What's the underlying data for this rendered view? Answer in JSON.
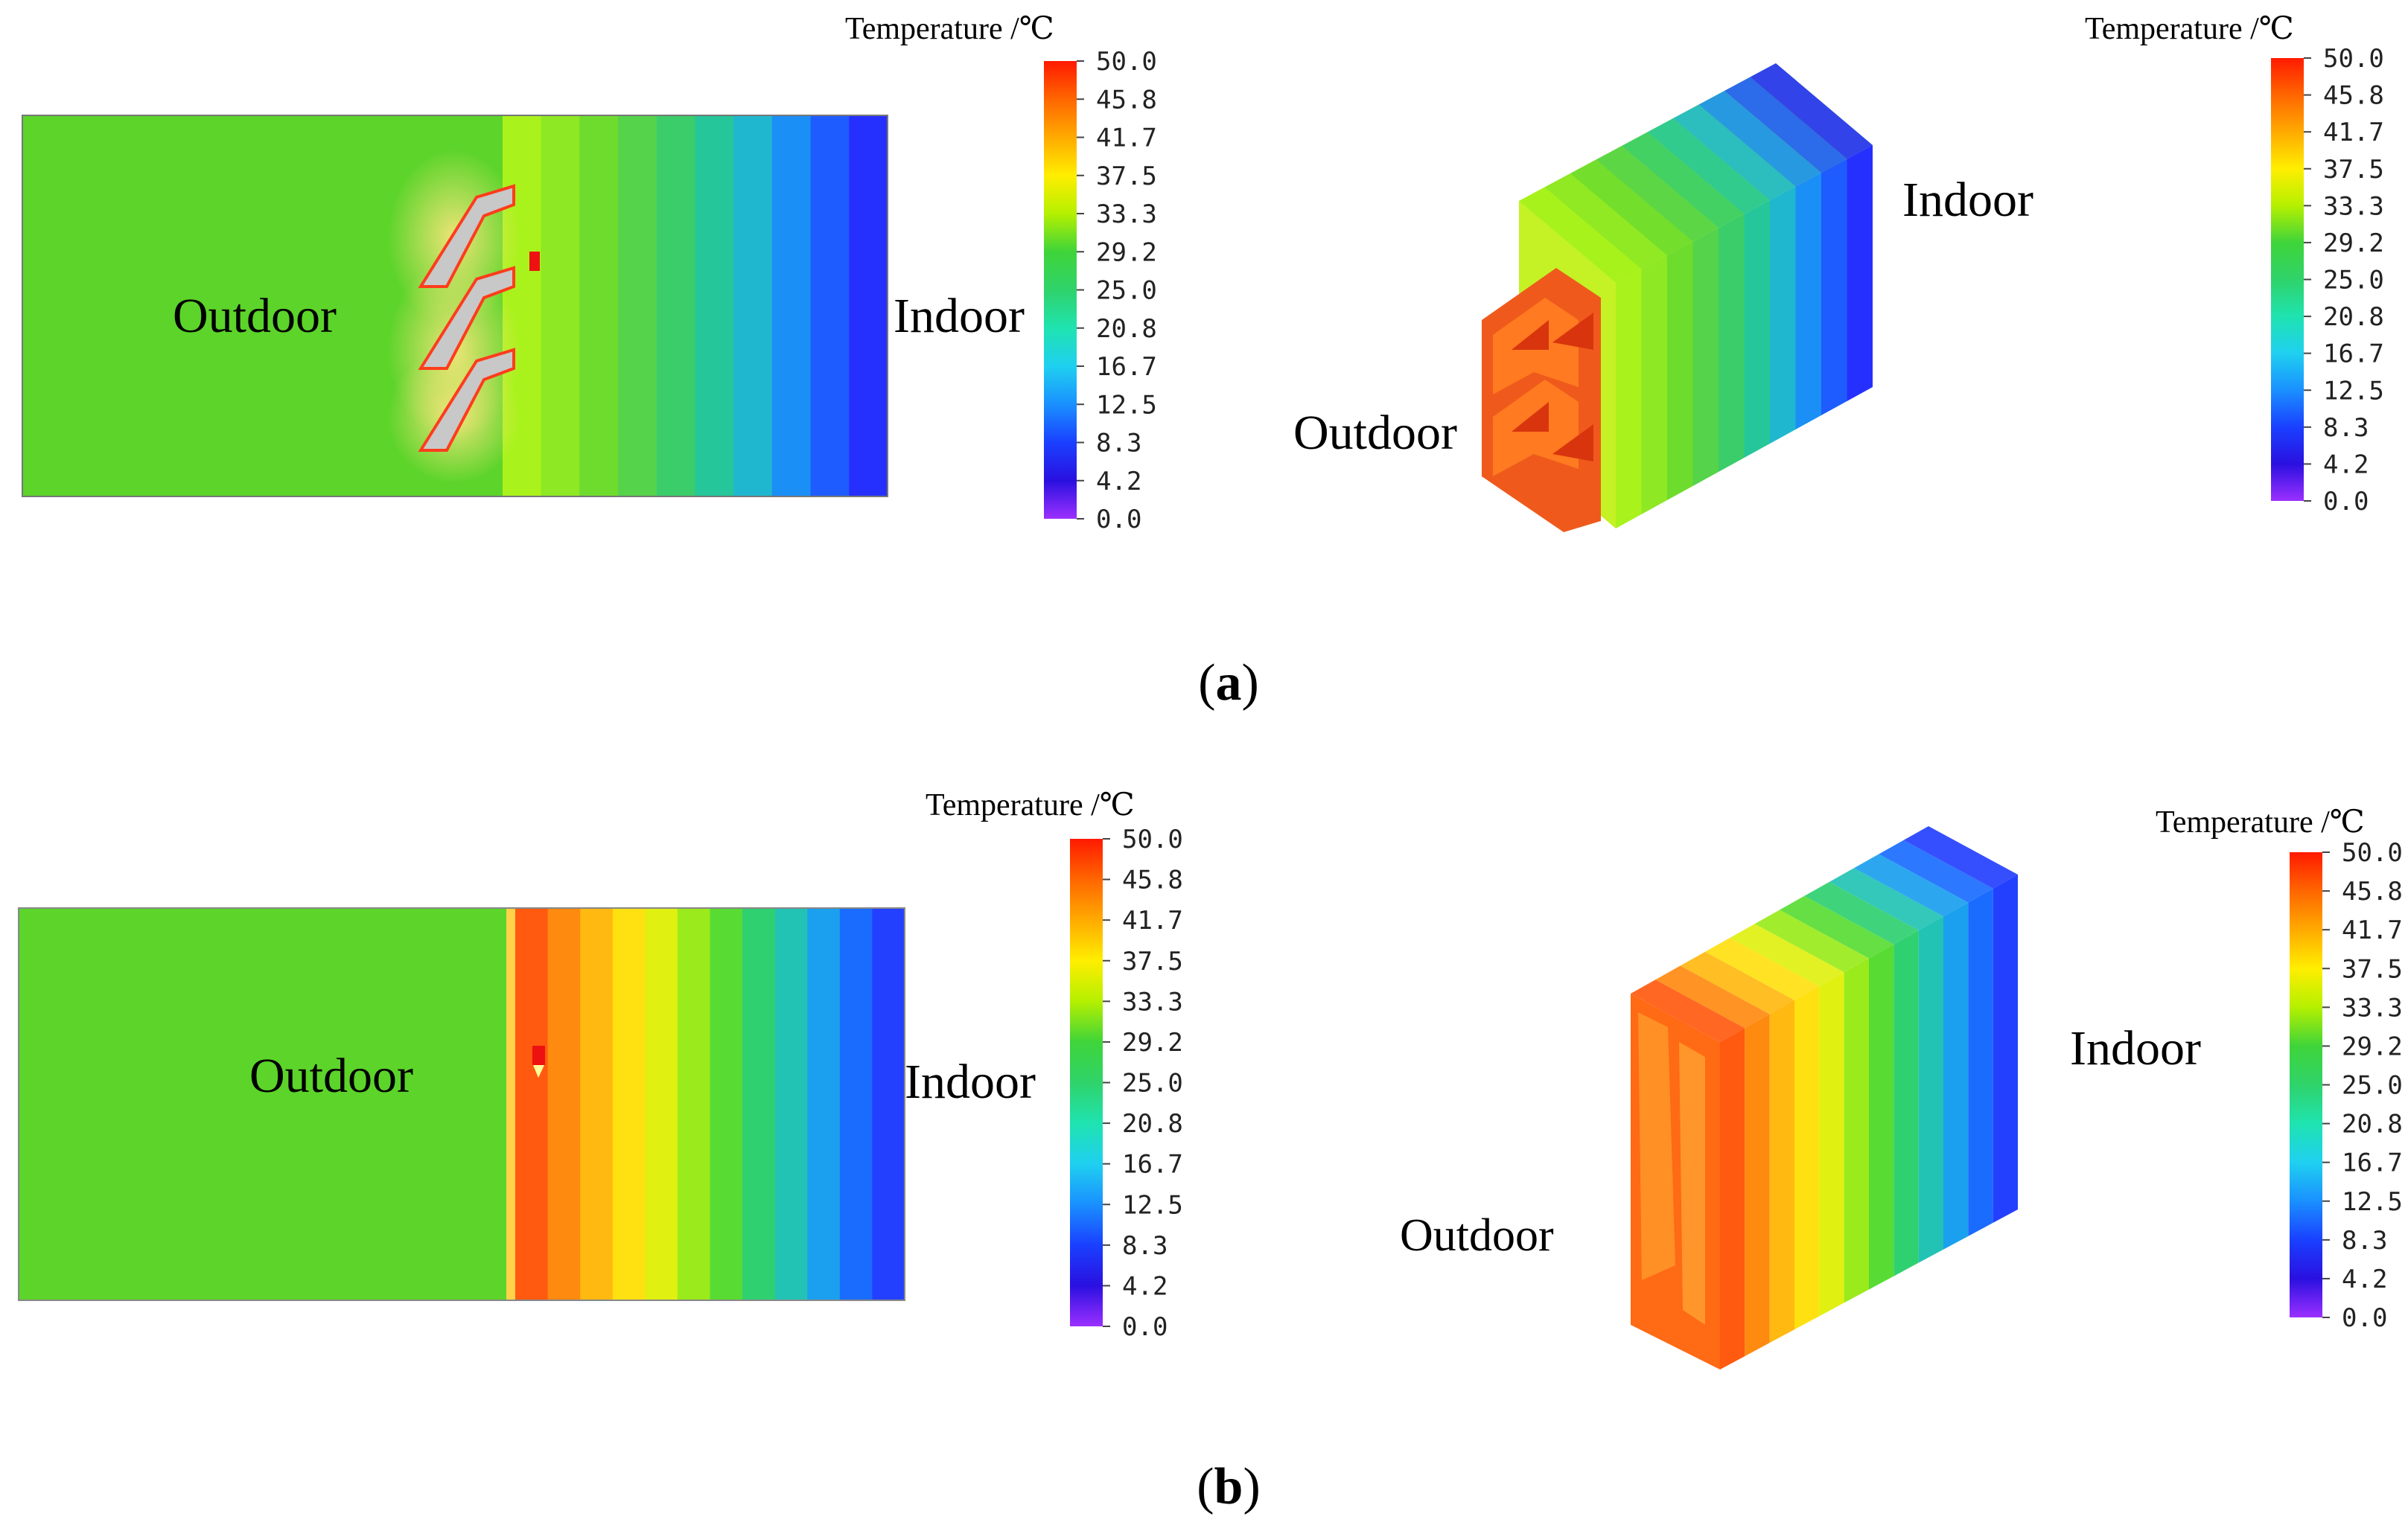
{
  "panels": [
    {
      "id": "a",
      "caption_paren_open": "(",
      "caption_letter": "a",
      "caption_paren_close": ")",
      "views": [
        {
          "outdoor_label": "Outdoor",
          "indoor_label": "Indoor",
          "colorbar": {
            "title": "Temperature /℃"
          }
        },
        {
          "outdoor_label": "Outdoor",
          "indoor_label": "Indoor",
          "colorbar": {
            "title": "Temperature /℃"
          }
        }
      ]
    },
    {
      "id": "b",
      "caption_paren_open": "(",
      "caption_letter": "b",
      "caption_paren_close": ")",
      "views": [
        {
          "outdoor_label": "Outdoor",
          "indoor_label": "Indoor",
          "colorbar": {
            "title": "Temperature /℃"
          }
        },
        {
          "outdoor_label": "Outdoor",
          "indoor_label": "Indoor",
          "colorbar": {
            "title": "Temperature /℃"
          }
        }
      ]
    }
  ],
  "colorbar_ticks": [
    "50.0",
    "45.8",
    "41.7",
    "37.5",
    "33.3",
    "29.2",
    "25.0",
    "20.8",
    "16.7",
    "12.5",
    "8.3",
    "4.2",
    "0.0"
  ],
  "colorbar_range": [
    0,
    50
  ],
  "colorbar_stops": [
    "#ff1a00",
    "#ff6600",
    "#ffaa00",
    "#ffee00",
    "#b5f000",
    "#3fd43a",
    "#2fd36a",
    "#1fe3b0",
    "#1fd0f0",
    "#1a90ff",
    "#1a40ff",
    "#2a10e0",
    "#9b30ff"
  ],
  "field_colors": {
    "outdoor_a": "#5cd42a",
    "wall_a_bands": [
      "#a9f21c",
      "#8ee824",
      "#6edc2c",
      "#55d34a",
      "#3acd6a",
      "#25c79a",
      "#1fb7cf",
      "#1a8ff5",
      "#1f5cff",
      "#2530ff"
    ],
    "outdoor_b": "#5cd42a",
    "wall_b_bands": [
      "#ff5a10",
      "#ff8a10",
      "#ffb910",
      "#ffe010",
      "#e0f010",
      "#9aea1c",
      "#58dc34",
      "#2fd070",
      "#22c3b4",
      "#1aa0ee",
      "#1a6cff",
      "#2440ff"
    ],
    "fin_color": "#c8c8c8",
    "fin_glow": "#ff3c1c"
  }
}
